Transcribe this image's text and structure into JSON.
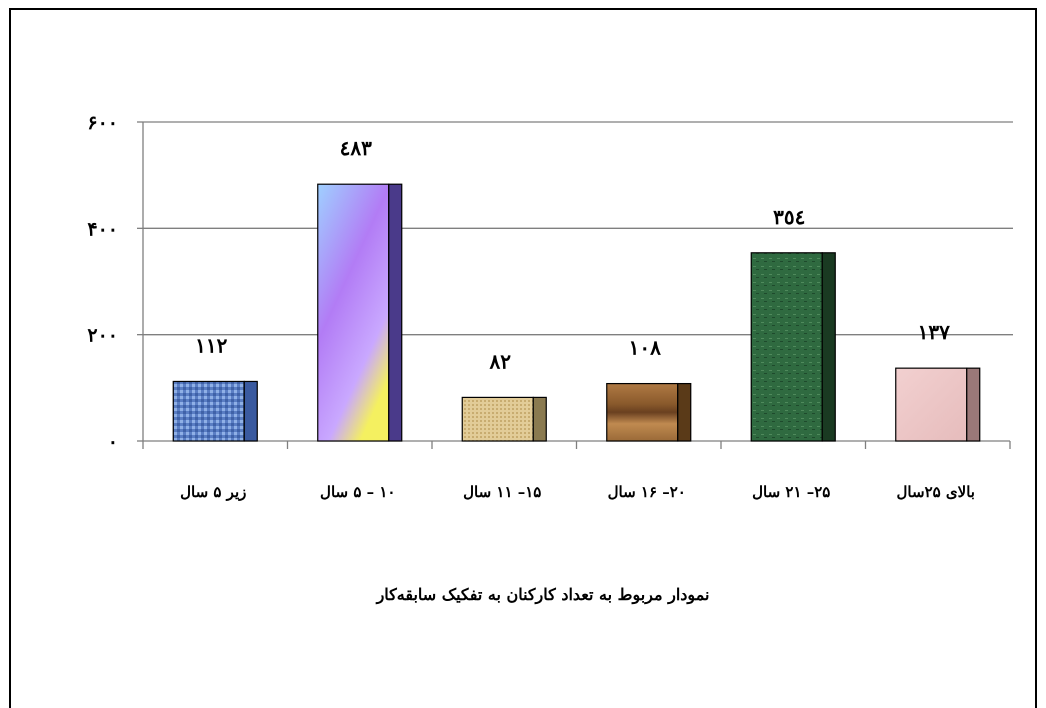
{
  "chart_data": {
    "type": "bar",
    "title": "",
    "caption": "نمودار مربوط به تعداد کارکنان به تفکیک سابقه‌کار",
    "categories": [
      "زیر ۵ سال",
      "۱۰ – ۵ سال",
      "۱۵– ۱۱ سال",
      "۲۰– ۱۶ سال",
      "۲۵– ۲۱ سال",
      "بالای ۲۵سال"
    ],
    "values": [
      112,
      483,
      82,
      108,
      354,
      137
    ],
    "value_labels": [
      "۱۱۲",
      "٤۸۳",
      "۸۲",
      "۱۰۸",
      "۳٥٤",
      "۱۳۷"
    ],
    "yticks": [
      0,
      200,
      400,
      600
    ],
    "ytick_labels": [
      "۰",
      "۲۰۰",
      "۴۰۰",
      "۶۰۰"
    ],
    "ylim": [
      0,
      600
    ],
    "grid": true,
    "legend": "none",
    "colors": [
      "#4a6fb8",
      "#b88cf0",
      "#d8c090",
      "#9a6a38",
      "#2f6a40",
      "#eec6c6"
    ],
    "side_colors": [
      "#3a5aa0",
      "#4a3a8a",
      "#8a7a50",
      "#5a3a18",
      "#1a3a22",
      "#9a7878"
    ]
  }
}
